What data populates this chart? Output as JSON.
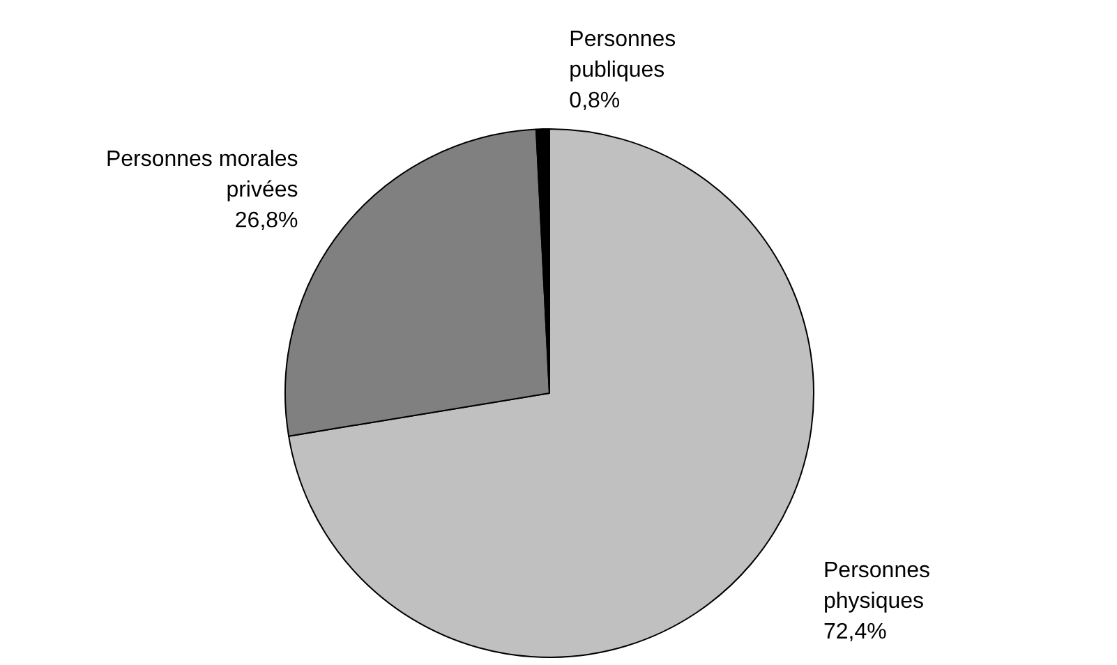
{
  "chart_data": {
    "type": "pie",
    "categories": [
      "Personnes physiques",
      "Personnes morales privées",
      "Personnes publiques"
    ],
    "values": [
      72.4,
      26.8,
      0.8
    ],
    "colors": [
      "#c0c0c0",
      "#808080",
      "#000000"
    ],
    "value_labels": [
      "72,4%",
      "26,8%",
      "0,8%"
    ]
  }
}
